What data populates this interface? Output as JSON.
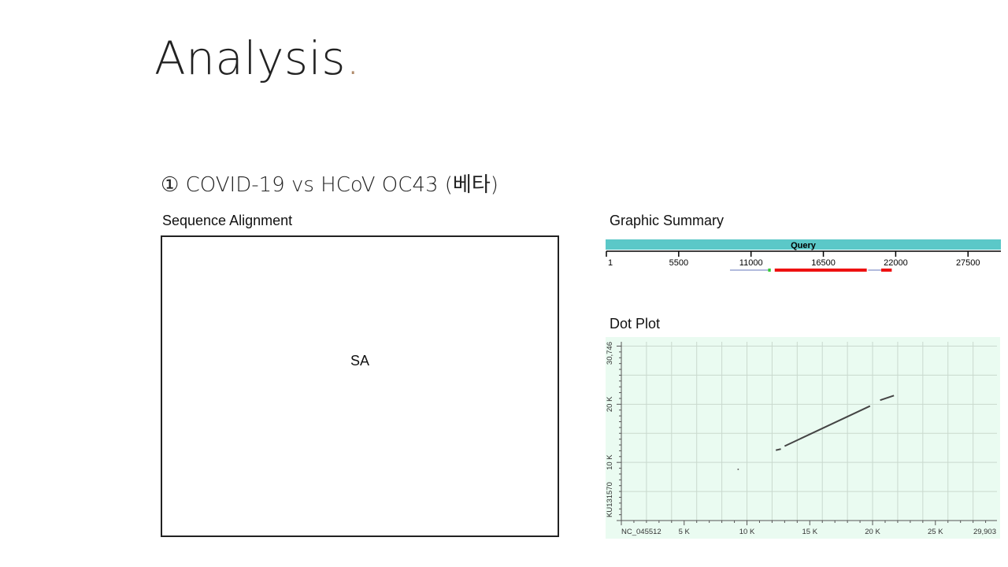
{
  "title": {
    "text": "Analysis",
    "dot": "."
  },
  "subtitle": "① COVID-19 vs HCoV OC43 (베타)",
  "sequence_alignment": {
    "label": "Sequence Alignment",
    "placeholder": "SA"
  },
  "graphic_summary": {
    "label": "Graphic Summary",
    "bar_label": "Query",
    "ticks": [
      "1",
      "5500",
      "11000",
      "16500",
      "22000",
      "27500"
    ]
  },
  "dot_plot": {
    "label": "Dot Plot",
    "x_axis_name": "NC_045512",
    "x_ticks": [
      "5 K",
      "10 K",
      "15 K",
      "20 K",
      "25 K",
      "29,903"
    ],
    "y_axis_name": "KU131570",
    "y_ticks": [
      "10 K",
      "20 K",
      "30,746"
    ]
  },
  "colors": {
    "query_bar": "#5bc8c8",
    "hit_main": "#ee1111",
    "hit_minor": "#33cc33",
    "dotplot_bg": "#eafbf1",
    "accent_dot": "#b08a6a"
  },
  "chart_data": [
    {
      "type": "graphic_summary",
      "query_length_range": [
        1,
        30000
      ],
      "hits": [
        {
          "start": 9400,
          "end": 12400,
          "color": "thin-blue"
        },
        {
          "start": 12300,
          "end": 12500,
          "color": "green"
        },
        {
          "start": 12800,
          "end": 19800,
          "color": "red"
        },
        {
          "start": 19900,
          "end": 20900,
          "color": "thin-blue"
        },
        {
          "start": 20900,
          "end": 21700,
          "color": "red"
        }
      ]
    },
    {
      "type": "scatter",
      "xlim": [
        0,
        29903
      ],
      "ylim": [
        0,
        30746
      ],
      "segments": [
        {
          "x": [
            12300,
            12700
          ],
          "y": [
            12100,
            12300
          ]
        },
        {
          "x": [
            13000,
            19800
          ],
          "y": [
            12800,
            19700
          ]
        },
        {
          "x": [
            20600,
            21700
          ],
          "y": [
            20700,
            21500
          ]
        }
      ],
      "points": [
        {
          "x": 9300,
          "y": 8800
        }
      ]
    }
  ]
}
